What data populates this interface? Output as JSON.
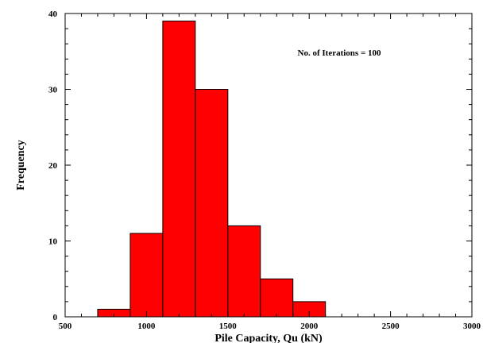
{
  "chart_data": {
    "type": "bar",
    "histogram": true,
    "bin_edges": [
      700,
      900,
      1100,
      1300,
      1500,
      1700,
      1900,
      2100
    ],
    "values": [
      1,
      11,
      39,
      30,
      12,
      5,
      2
    ],
    "xlabel": "Pile Capacity, Qu (kN)",
    "ylabel": "Frequency",
    "annotation": "No. of Iterations = 100",
    "xlim": [
      500,
      3000
    ],
    "ylim": [
      0,
      40
    ],
    "xticks": [
      500,
      1000,
      1500,
      2000,
      2500,
      3000
    ],
    "yticks": [
      0,
      10,
      20,
      30,
      40
    ],
    "grid": false,
    "colors": {
      "bar_fill": "#ff0000",
      "bar_stroke": "#000000",
      "axis": "#000000"
    }
  }
}
